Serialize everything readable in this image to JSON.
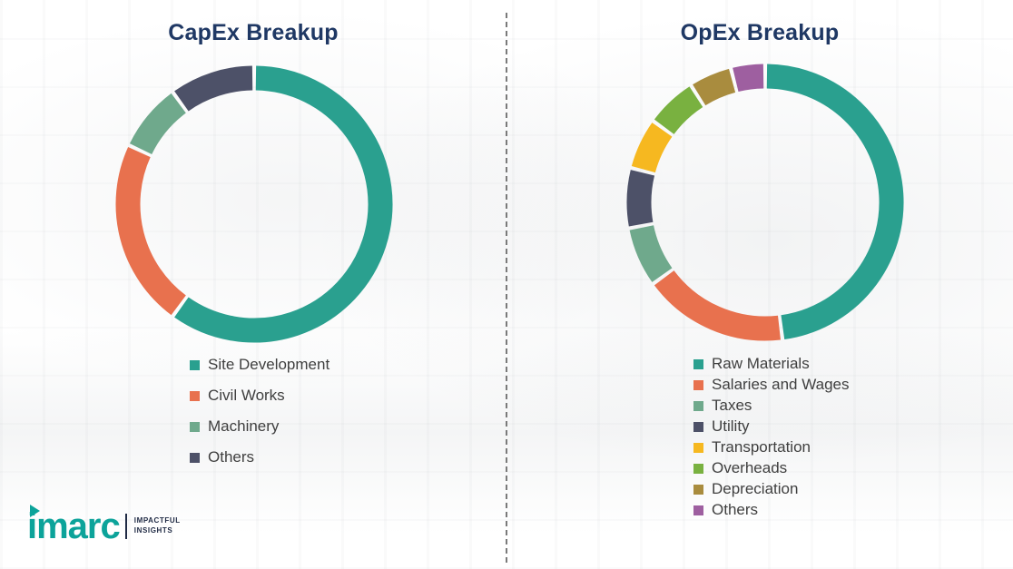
{
  "titles": {
    "left": "CapEx Breakup",
    "right": "OpEx Breakup"
  },
  "colors": {
    "title": "#1F3864",
    "legend_text": "#3f3f3f",
    "divider": "#7a7a7a",
    "brand_teal": "#0CA39A"
  },
  "chart_data": [
    {
      "type": "pie",
      "subtype": "donut",
      "title": "CapEx Breakup",
      "legend_position": "bottom",
      "segments": [
        {
          "label": "Site Development",
          "value": 60,
          "color": "#2AA08F"
        },
        {
          "label": "Civil Works",
          "value": 22,
          "color": "#E8714E"
        },
        {
          "label": "Machinery",
          "value": 8,
          "color": "#6FA98C"
        },
        {
          "label": "Others",
          "value": 10,
          "color": "#4D5168"
        }
      ]
    },
    {
      "type": "pie",
      "subtype": "donut",
      "title": "OpEx Breakup",
      "legend_position": "bottom",
      "segments": [
        {
          "label": "Raw Materials",
          "value": 48,
          "color": "#2AA08F"
        },
        {
          "label": "Salaries and Wages",
          "value": 17,
          "color": "#E8714E"
        },
        {
          "label": "Taxes",
          "value": 7,
          "color": "#6FA98C"
        },
        {
          "label": "Utility",
          "value": 7,
          "color": "#4D5168"
        },
        {
          "label": "Transportation",
          "value": 6,
          "color": "#F6B820"
        },
        {
          "label": "Overheads",
          "value": 6,
          "color": "#79B140"
        },
        {
          "label": "Depreciation",
          "value": 5,
          "color": "#A98C3E"
        },
        {
          "label": "Others",
          "value": 4,
          "color": "#9E5FA0"
        }
      ]
    }
  ],
  "footer": {
    "brand": "imarc",
    "tagline_line1": "IMPACTFUL",
    "tagline_line2": "INSIGHTS"
  }
}
